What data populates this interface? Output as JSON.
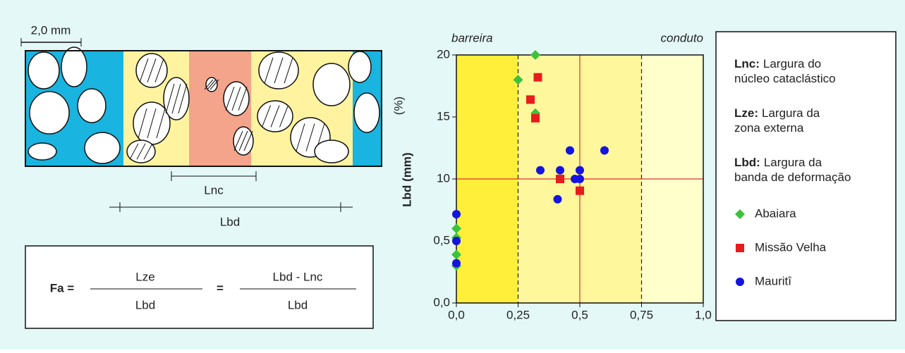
{
  "diagram": {
    "scale_label": "2,0 mm",
    "lnc_label": "Lnc",
    "lbd_label": "Lbd"
  },
  "formula": {
    "lhs": "Fa =",
    "num1": "Lze",
    "den1": "Lbd",
    "eq": "=",
    "num2": "Lbd - Lnc",
    "den2": "Lbd"
  },
  "chart_data": {
    "type": "scatter",
    "y_label": "Lbd (mm)",
    "y_unit_label": "(%)",
    "annotations": [
      "barreira",
      "conduto"
    ],
    "xlim": [
      0,
      1
    ],
    "xticks": [
      {
        "value": 0,
        "label": "0,0"
      },
      {
        "value": 0.25,
        "label": "0,25"
      },
      {
        "value": 0.5,
        "label": "0,5"
      },
      {
        "value": 0.75,
        "label": "0,75"
      },
      {
        "value": 1,
        "label": "1,0"
      }
    ],
    "ylim": [
      0,
      20
    ],
    "yticks": [
      {
        "value": 0,
        "label": "0,0"
      },
      {
        "value": 0.5,
        "label": "0,5"
      },
      10,
      15,
      20
    ],
    "dashed_lines_x": [
      0.25,
      0.75
    ],
    "reference_lines": {
      "x": [
        0.5
      ],
      "y": [
        10
      ]
    },
    "zone_colors": [
      "#ffee3a",
      "#fff79c",
      "#ffffcc"
    ],
    "legend_notes": [
      {
        "term": "Lnc:",
        "lines": [
          "Largura do",
          "núcleo cataclástico"
        ]
      },
      {
        "term": "Lze:",
        "lines": [
          "Largura da",
          "zona externa"
        ]
      },
      {
        "term": "Lbd:",
        "lines": [
          "Largura da",
          "banda de deformação"
        ]
      }
    ],
    "series": [
      {
        "name": "Abaiara",
        "color": "#3cc23c",
        "marker": "diamond",
        "x": [
          0.25,
          0.32,
          0.32,
          0,
          0,
          0,
          0
        ],
        "values": [
          18,
          20,
          15.3,
          2.4,
          1.0,
          0.39,
          0.3
        ]
      },
      {
        "name": "Missão Velha",
        "color": "#e81c1c",
        "marker": "square",
        "x": [
          0.33,
          0.3,
          0.32,
          0.42,
          0.5
        ],
        "values": [
          18.2,
          16.4,
          14.9,
          10,
          8.2
        ]
      },
      {
        "name": "Mauritî",
        "color": "#1414e0",
        "marker": "circle",
        "x": [
          0.46,
          0.6,
          0.34,
          0.42,
          0.5,
          0.48,
          0.5,
          0.41,
          0,
          0,
          0
        ],
        "values": [
          12.3,
          12.3,
          10.7,
          10.7,
          10.7,
          10,
          10,
          6.9,
          4.6,
          0.5,
          0.32
        ]
      }
    ]
  }
}
